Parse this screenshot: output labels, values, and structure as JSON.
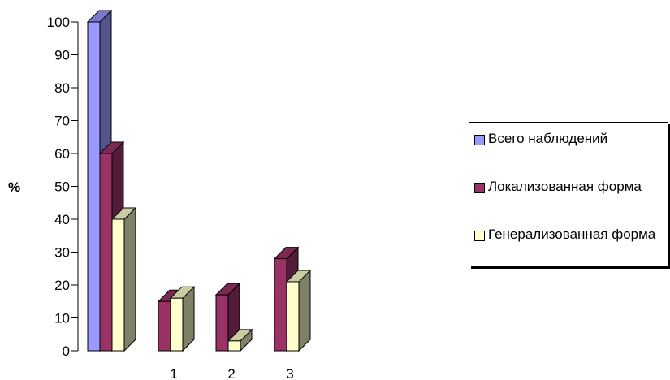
{
  "chart_data": {
    "type": "bar",
    "categories": [
      "",
      "1",
      "2",
      "3"
    ],
    "ylabel": "%",
    "ylim": [
      0,
      100
    ],
    "yticks": [
      0,
      10,
      20,
      30,
      40,
      50,
      60,
      70,
      80,
      90,
      100
    ],
    "series": [
      {
        "name": "Всего наблюдений",
        "color": "#9999ff",
        "values": [
          100,
          null,
          null,
          null
        ]
      },
      {
        "name": "Локализованная форма",
        "color": "#993366",
        "values": [
          60,
          15,
          17,
          28
        ]
      },
      {
        "name": "Генерализованная форма",
        "color": "#ffffcc",
        "values": [
          40,
          16,
          3,
          21
        ]
      }
    ],
    "legend_position": "right",
    "grid": false
  }
}
